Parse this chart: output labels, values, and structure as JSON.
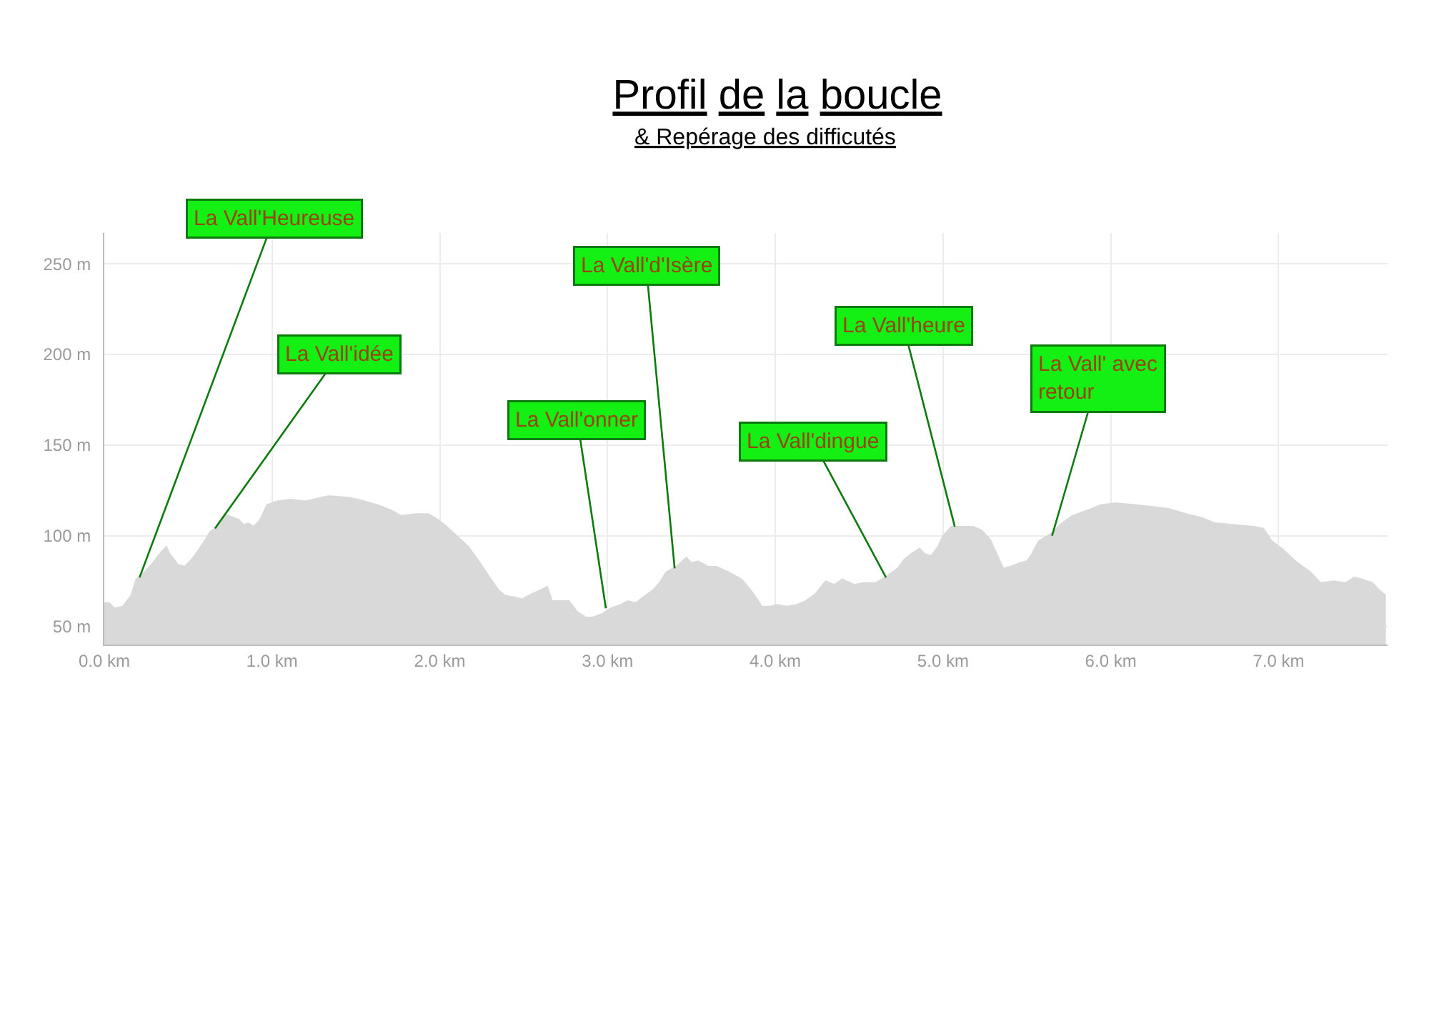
{
  "chart_data": {
    "type": "area",
    "title": "Profil de la boucle",
    "subtitle": "& Repérage des difficutés",
    "x": [
      0,
      0.03,
      0.06,
      0.11,
      0.16,
      0.19,
      0.24,
      0.29,
      0.33,
      0.37,
      0.39,
      0.44,
      0.48,
      0.53,
      0.59,
      0.63,
      0.67,
      0.71,
      0.74,
      0.8,
      0.83,
      0.86,
      0.89,
      0.93,
      0.97,
      1.03,
      1.11,
      1.2,
      1.29,
      1.34,
      1.46,
      1.51,
      1.63,
      1.71,
      1.77,
      1.86,
      1.93,
      1.97,
      2.03,
      2.1,
      2.17,
      2.24,
      2.29,
      2.35,
      2.39,
      2.45,
      2.49,
      2.55,
      2.6,
      2.64,
      2.67,
      2.72,
      2.77,
      2.82,
      2.87,
      2.91,
      2.97,
      3.02,
      3.08,
      3.12,
      3.17,
      3.21,
      3.27,
      3.31,
      3.35,
      3.41,
      3.47,
      3.5,
      3.54,
      3.6,
      3.65,
      3.72,
      3.8,
      3.87,
      3.92,
      3.97,
      4.01,
      4.07,
      4.13,
      4.18,
      4.24,
      4.3,
      4.35,
      4.4,
      4.47,
      4.53,
      4.6,
      4.67,
      4.73,
      4.77,
      4.81,
      4.86,
      4.89,
      4.93,
      4.97,
      5.0,
      5.05,
      5.1,
      5.18,
      5.23,
      5.28,
      5.32,
      5.36,
      5.4,
      5.46,
      5.5,
      5.53,
      5.57,
      5.64,
      5.71,
      5.77,
      5.86,
      5.94,
      6.03,
      6.14,
      6.25,
      6.34,
      6.45,
      6.54,
      6.62,
      6.74,
      6.85,
      6.91,
      6.96,
      7.02,
      7.1,
      7.19,
      7.25,
      7.33,
      7.4,
      7.45,
      7.5,
      7.56,
      7.6,
      7.64
    ],
    "values": [
      63,
      63,
      60,
      61,
      67,
      76,
      80,
      85,
      90,
      94,
      90,
      84,
      83,
      88,
      96,
      102,
      105,
      111,
      111,
      109,
      106,
      107,
      105,
      109,
      117,
      119,
      120,
      119,
      121,
      122,
      121,
      120,
      117,
      114,
      111,
      112,
      112,
      110,
      106,
      100,
      94,
      85,
      78,
      70,
      67,
      66,
      65,
      68,
      70,
      72,
      64,
      64,
      64,
      58,
      55,
      55,
      57,
      60,
      62,
      64,
      63,
      66,
      70,
      74,
      80,
      83,
      88,
      85,
      86,
      83,
      83,
      80,
      76,
      68,
      61,
      61,
      62,
      61,
      62,
      64,
      68,
      75,
      73,
      76,
      73,
      74,
      74,
      78,
      82,
      87,
      90,
      93,
      90,
      89,
      94,
      100,
      105,
      105,
      105,
      103,
      98,
      90,
      82,
      83,
      85,
      86,
      90,
      97,
      101,
      107,
      111,
      114,
      117,
      118,
      117,
      116,
      115,
      112,
      110,
      107,
      106,
      105,
      104,
      97,
      93,
      86,
      80,
      74,
      75,
      74,
      77,
      76,
      74,
      70,
      67
    ],
    "color": "#d9d9d9",
    "xlim": [
      0,
      7.65
    ],
    "ylim": [
      40,
      267
    ],
    "xticks": [
      {
        "value": 0,
        "label": "0.0 km"
      },
      {
        "value": 1,
        "label": "1.0 km"
      },
      {
        "value": 2,
        "label": "2.0 km"
      },
      {
        "value": 3,
        "label": "3.0 km"
      },
      {
        "value": 4,
        "label": "4.0 km"
      },
      {
        "value": 5,
        "label": "5.0 km"
      },
      {
        "value": 6,
        "label": "6.0 km"
      },
      {
        "value": 7,
        "label": "7.0 km"
      }
    ],
    "yticks": [
      {
        "value": 50,
        "label": "50 m"
      },
      {
        "value": 100,
        "label": "100 m"
      },
      {
        "value": 150,
        "label": "150 m"
      },
      {
        "value": 200,
        "label": "200 m"
      },
      {
        "value": 250,
        "label": "250 m"
      }
    ],
    "grid": true,
    "annotations": [
      {
        "text": "La Vall'Heureuse",
        "x": 0.21,
        "y": 77
      },
      {
        "text": "La Vall'idée",
        "x": 0.66,
        "y": 104
      },
      {
        "text": "La Vall'onner",
        "x": 2.99,
        "y": 60
      },
      {
        "text": "La Vall'd'Isère",
        "x": 3.4,
        "y": 82
      },
      {
        "text": "La Vall'dingue",
        "x": 4.66,
        "y": 77
      },
      {
        "text": "La Vall'heure",
        "x": 5.07,
        "y": 105
      },
      {
        "text": "La Vall' avec\nretour",
        "x": 5.65,
        "y": 100
      }
    ]
  }
}
